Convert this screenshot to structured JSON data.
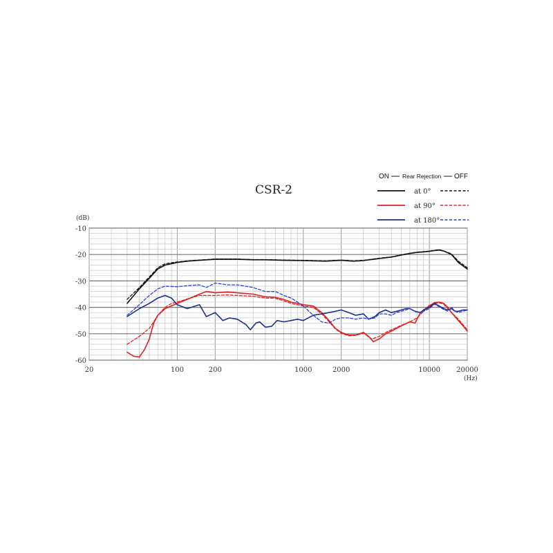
{
  "chart_data": {
    "type": "line",
    "title": "CSR-2",
    "ylabel": "(dB)",
    "xlabel": "(Hz)",
    "xscale": "log",
    "xlim": [
      20,
      20000
    ],
    "ylim": [
      -60,
      -10
    ],
    "x_ticks": [
      "20",
      "100",
      "200",
      "1000",
      "2000",
      "10000",
      "20000"
    ],
    "x_tick_values": [
      20,
      100,
      200,
      1000,
      2000,
      10000,
      20000
    ],
    "y_ticks": [
      "-10",
      "-20",
      "-30",
      "-40",
      "-50",
      "-60"
    ],
    "y_tick_values": [
      -10,
      -20,
      -30,
      -40,
      -50,
      -60
    ],
    "grid": true,
    "legend": {
      "header_on": "ON",
      "header_mid": "Rear Rejection",
      "header_off": "OFF",
      "placement": "top-right"
    },
    "series": [
      {
        "name": "at 0°",
        "mode": "ON",
        "color": "#111111",
        "dash": "solid",
        "points": [
          [
            40,
            -38.5
          ],
          [
            50,
            -33
          ],
          [
            60,
            -29
          ],
          [
            70,
            -25.5
          ],
          [
            80,
            -24
          ],
          [
            100,
            -23
          ],
          [
            120,
            -22.5
          ],
          [
            150,
            -22.2
          ],
          [
            200,
            -21.8
          ],
          [
            300,
            -21.8
          ],
          [
            400,
            -22
          ],
          [
            500,
            -22
          ],
          [
            700,
            -22.2
          ],
          [
            1000,
            -22.3
          ],
          [
            1500,
            -22.5
          ],
          [
            2000,
            -22.2
          ],
          [
            2500,
            -22.5
          ],
          [
            3000,
            -22.3
          ],
          [
            4000,
            -21.5
          ],
          [
            5000,
            -21
          ],
          [
            6000,
            -20.2
          ],
          [
            7000,
            -19.6
          ],
          [
            8000,
            -19.2
          ],
          [
            9000,
            -19
          ],
          [
            10000,
            -18.8
          ],
          [
            11000,
            -18.5
          ],
          [
            12000,
            -18.3
          ],
          [
            13000,
            -18.7
          ],
          [
            15000,
            -20
          ],
          [
            17000,
            -23
          ],
          [
            20000,
            -25.5
          ]
        ]
      },
      {
        "name": "at 0°",
        "mode": "OFF",
        "color": "#111111",
        "dash": "dashed",
        "points": [
          [
            40,
            -37
          ],
          [
            50,
            -32.5
          ],
          [
            60,
            -28.5
          ],
          [
            70,
            -25
          ],
          [
            80,
            -23.5
          ],
          [
            100,
            -22.8
          ],
          [
            120,
            -22.4
          ],
          [
            150,
            -22.1
          ],
          [
            200,
            -21.7
          ],
          [
            300,
            -21.7
          ],
          [
            400,
            -21.9
          ],
          [
            500,
            -21.9
          ],
          [
            700,
            -22.1
          ],
          [
            1000,
            -22.2
          ],
          [
            1500,
            -22.4
          ],
          [
            2000,
            -22.1
          ],
          [
            2500,
            -22.4
          ],
          [
            3000,
            -22.2
          ],
          [
            4000,
            -21.4
          ],
          [
            5000,
            -20.9
          ],
          [
            6000,
            -20.1
          ],
          [
            7000,
            -19.5
          ],
          [
            8000,
            -19.1
          ],
          [
            9000,
            -18.9
          ],
          [
            10000,
            -18.7
          ],
          [
            11000,
            -18.4
          ],
          [
            12000,
            -18.2
          ],
          [
            13000,
            -18.6
          ],
          [
            15000,
            -19.8
          ],
          [
            17000,
            -22.5
          ],
          [
            20000,
            -25
          ]
        ]
      },
      {
        "name": "at 90°",
        "mode": "ON",
        "color": "#e02020",
        "dash": "solid",
        "points": [
          [
            40,
            -57
          ],
          [
            45,
            -58.5
          ],
          [
            50,
            -58.8
          ],
          [
            55,
            -56
          ],
          [
            60,
            -52
          ],
          [
            65,
            -46
          ],
          [
            70,
            -43
          ],
          [
            80,
            -40.5
          ],
          [
            100,
            -38.5
          ],
          [
            120,
            -37
          ],
          [
            150,
            -35
          ],
          [
            170,
            -34
          ],
          [
            200,
            -34.5
          ],
          [
            250,
            -34.2
          ],
          [
            300,
            -34.5
          ],
          [
            400,
            -35
          ],
          [
            500,
            -36
          ],
          [
            600,
            -36.2
          ],
          [
            700,
            -37
          ],
          [
            800,
            -38
          ],
          [
            900,
            -38.5
          ],
          [
            1000,
            -39
          ],
          [
            1200,
            -39.5
          ],
          [
            1400,
            -42
          ],
          [
            1600,
            -45
          ],
          [
            1800,
            -48
          ],
          [
            2000,
            -49.5
          ],
          [
            2300,
            -50.5
          ],
          [
            2600,
            -50.5
          ],
          [
            3000,
            -49.5
          ],
          [
            3300,
            -51
          ],
          [
            3600,
            -53
          ],
          [
            4000,
            -52
          ],
          [
            4500,
            -50
          ],
          [
            5000,
            -49
          ],
          [
            6000,
            -47
          ],
          [
            7000,
            -45.5
          ],
          [
            7700,
            -46
          ],
          [
            8500,
            -42
          ],
          [
            9000,
            -41
          ],
          [
            10000,
            -39.5
          ],
          [
            11000,
            -38.2
          ],
          [
            12000,
            -38
          ],
          [
            13000,
            -38.5
          ],
          [
            14000,
            -40
          ],
          [
            15000,
            -42
          ],
          [
            17000,
            -45
          ],
          [
            18500,
            -47
          ],
          [
            20000,
            -49
          ]
        ]
      },
      {
        "name": "at 90°",
        "mode": "OFF",
        "color": "#e02020",
        "dash": "dashed",
        "points": [
          [
            40,
            -54
          ],
          [
            50,
            -51
          ],
          [
            60,
            -48
          ],
          [
            65,
            -45.5
          ],
          [
            70,
            -43
          ],
          [
            80,
            -40
          ],
          [
            90,
            -38.5
          ],
          [
            100,
            -38
          ],
          [
            120,
            -36.8
          ],
          [
            150,
            -35.5
          ],
          [
            200,
            -35.5
          ],
          [
            250,
            -35.3
          ],
          [
            300,
            -35.5
          ],
          [
            400,
            -35.8
          ],
          [
            500,
            -36.5
          ],
          [
            600,
            -36.6
          ],
          [
            700,
            -37.5
          ],
          [
            800,
            -38.5
          ],
          [
            900,
            -39
          ],
          [
            1000,
            -39.5
          ],
          [
            1200,
            -40
          ],
          [
            1400,
            -42.5
          ],
          [
            1600,
            -45.5
          ],
          [
            1800,
            -48.2
          ],
          [
            2000,
            -49.8
          ],
          [
            2300,
            -50.8
          ],
          [
            2600,
            -50.6
          ],
          [
            3000,
            -49.8
          ],
          [
            3500,
            -52
          ],
          [
            4000,
            -51
          ],
          [
            4500,
            -49.5
          ],
          [
            5000,
            -48.5
          ],
          [
            6000,
            -46.8
          ],
          [
            7000,
            -45.5
          ],
          [
            8000,
            -44
          ],
          [
            9000,
            -41.5
          ],
          [
            10000,
            -39.2
          ],
          [
            11000,
            -38.5
          ],
          [
            12000,
            -38.3
          ],
          [
            13000,
            -38.8
          ],
          [
            14000,
            -40.5
          ],
          [
            15000,
            -42
          ],
          [
            17000,
            -44.5
          ],
          [
            20000,
            -48.5
          ]
        ]
      },
      {
        "name": "at 180°",
        "mode": "ON",
        "color": "#1a2f8a",
        "dash": "solid",
        "points": [
          [
            40,
            -43.5
          ],
          [
            50,
            -40.5
          ],
          [
            60,
            -38.5
          ],
          [
            70,
            -36.5
          ],
          [
            80,
            -35.5
          ],
          [
            90,
            -36.5
          ],
          [
            100,
            -39
          ],
          [
            120,
            -40.5
          ],
          [
            150,
            -39
          ],
          [
            170,
            -43.5
          ],
          [
            200,
            -42
          ],
          [
            230,
            -45
          ],
          [
            260,
            -44
          ],
          [
            300,
            -44.5
          ],
          [
            350,
            -46.5
          ],
          [
            380,
            -48.5
          ],
          [
            420,
            -46
          ],
          [
            450,
            -45.5
          ],
          [
            500,
            -47.5
          ],
          [
            560,
            -47.2
          ],
          [
            620,
            -45
          ],
          [
            700,
            -45.5
          ],
          [
            800,
            -45
          ],
          [
            900,
            -44.5
          ],
          [
            1000,
            -45
          ],
          [
            1200,
            -43
          ],
          [
            1400,
            -42.5
          ],
          [
            1600,
            -42
          ],
          [
            1800,
            -41.5
          ],
          [
            2000,
            -41
          ],
          [
            2300,
            -42
          ],
          [
            2600,
            -43
          ],
          [
            3000,
            -42.5
          ],
          [
            3300,
            -44.5
          ],
          [
            3700,
            -43.5
          ],
          [
            4000,
            -42
          ],
          [
            4500,
            -41
          ],
          [
            5000,
            -42
          ],
          [
            5500,
            -41.5
          ],
          [
            6000,
            -41
          ],
          [
            6500,
            -40.5
          ],
          [
            7000,
            -40.5
          ],
          [
            7700,
            -41.5
          ],
          [
            8500,
            -42
          ],
          [
            9000,
            -41
          ],
          [
            10000,
            -40
          ],
          [
            11000,
            -38.5
          ],
          [
            12000,
            -39.5
          ],
          [
            13000,
            -40.5
          ],
          [
            14000,
            -41
          ],
          [
            15000,
            -40.5
          ],
          [
            16000,
            -41.5
          ],
          [
            17000,
            -41.5
          ],
          [
            18500,
            -41
          ],
          [
            20000,
            -41
          ]
        ]
      },
      {
        "name": "at 180°",
        "mode": "OFF",
        "color": "#2a3fe0",
        "dash": "dashed",
        "points": [
          [
            40,
            -43
          ],
          [
            50,
            -39
          ],
          [
            60,
            -35.5
          ],
          [
            70,
            -33
          ],
          [
            80,
            -32
          ],
          [
            100,
            -32.2
          ],
          [
            120,
            -31.8
          ],
          [
            150,
            -31.5
          ],
          [
            170,
            -32.5
          ],
          [
            200,
            -30.8
          ],
          [
            250,
            -31.5
          ],
          [
            300,
            -31.5
          ],
          [
            400,
            -32.5
          ],
          [
            500,
            -34
          ],
          [
            600,
            -34
          ],
          [
            700,
            -35.5
          ],
          [
            800,
            -36.5
          ],
          [
            900,
            -38
          ],
          [
            1000,
            -39.5
          ],
          [
            1200,
            -43
          ],
          [
            1400,
            -45.5
          ],
          [
            1600,
            -46
          ],
          [
            1800,
            -44.5
          ],
          [
            2000,
            -44
          ],
          [
            2300,
            -44
          ],
          [
            2600,
            -44.5
          ],
          [
            3000,
            -44
          ],
          [
            3300,
            -44.5
          ],
          [
            3700,
            -44
          ],
          [
            4000,
            -42.5
          ],
          [
            4500,
            -42.5
          ],
          [
            5000,
            -43
          ],
          [
            5500,
            -42
          ],
          [
            6000,
            -41.5
          ],
          [
            7000,
            -40.5
          ],
          [
            8000,
            -42
          ],
          [
            9000,
            -41.5
          ],
          [
            10000,
            -40.5
          ],
          [
            11000,
            -38.8
          ],
          [
            12000,
            -39.8
          ],
          [
            13000,
            -40.8
          ],
          [
            14000,
            -41.5
          ],
          [
            15000,
            -40
          ],
          [
            16000,
            -41.5
          ],
          [
            17000,
            -42
          ],
          [
            18500,
            -41.5
          ],
          [
            20000,
            -41
          ]
        ]
      }
    ]
  }
}
